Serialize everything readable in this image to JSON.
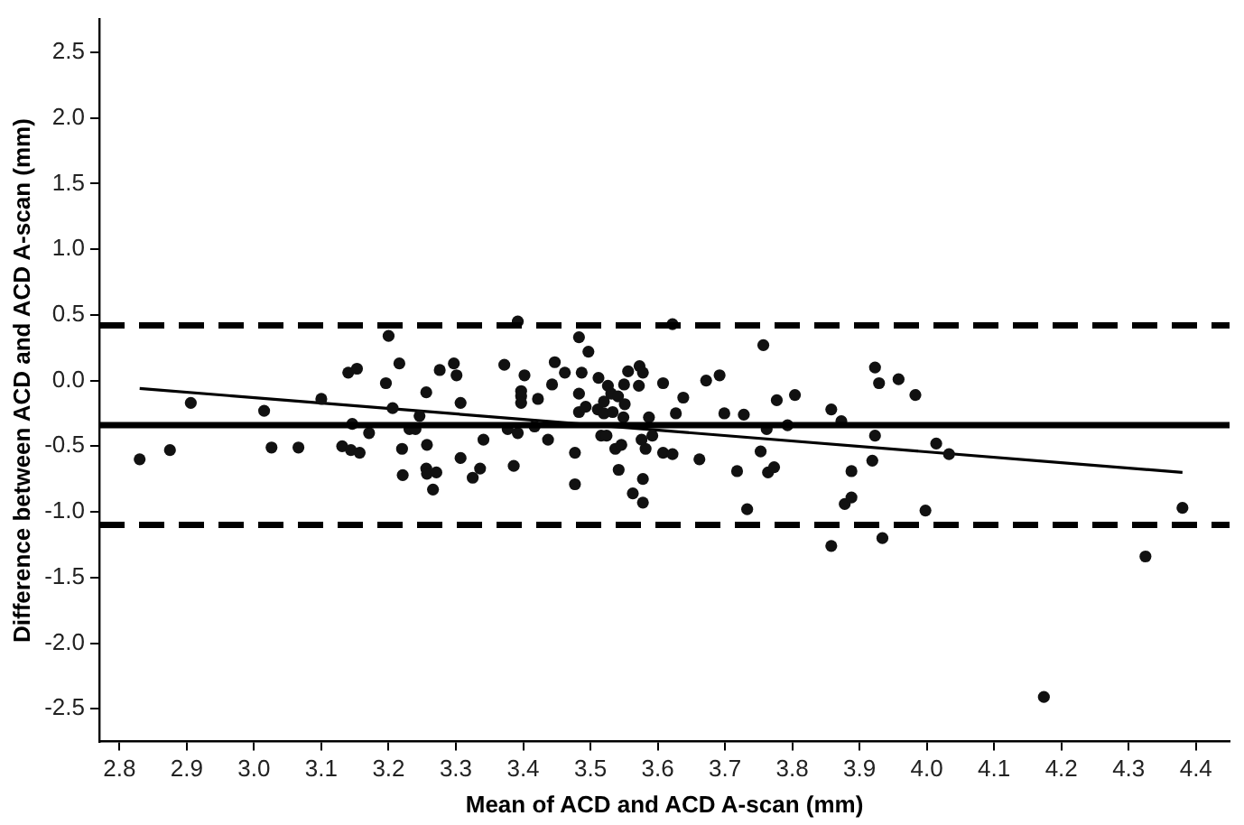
{
  "chart_data": {
    "type": "scatter",
    "xlabel": "Mean of ACD and ACD A-scan (mm)",
    "ylabel": "Difference between ACD and ACD A-scan (mm)",
    "xlim": [
      2.77,
      4.45
    ],
    "xticks": [
      2.8,
      2.9,
      {
        "value": 3.0,
        "label": "3.0"
      },
      3.1,
      3.2,
      3.3,
      3.4,
      3.5,
      3.6,
      3.7,
      3.8,
      3.9,
      {
        "value": 4.0,
        "label": "4.0"
      },
      4.1,
      4.2,
      4.3,
      4.4
    ],
    "ylim": [
      -2.75,
      2.75
    ],
    "yticks": [
      {
        "value": -2.5,
        "label": "-2.5"
      },
      {
        "value": -2.0,
        "label": "-2.0"
      },
      {
        "value": -1.5,
        "label": "-1.5"
      },
      {
        "value": -1.0,
        "label": "-1.0"
      },
      {
        "value": -0.5,
        "label": "-0.5"
      },
      {
        "value": 0,
        "label": "0.0"
      },
      {
        "value": 0.5,
        "label": "0.5"
      },
      {
        "value": 1.0,
        "label": "1.0"
      },
      {
        "value": 1.5,
        "label": "1.5"
      },
      {
        "value": 2.0,
        "label": "2.0"
      },
      {
        "value": 2.5,
        "label": "2.5"
      }
    ],
    "grid": false,
    "legend": false,
    "series": [
      {
        "type": "scatter",
        "marker": "circle",
        "color": "#111111",
        "x": [
          2.83,
          2.875,
          2.906,
          3.015,
          3.026,
          3.066,
          3.1,
          3.131,
          3.144,
          3.157,
          3.14,
          3.153,
          3.146,
          3.171,
          3.2,
          3.216,
          3.196,
          3.206,
          3.22,
          3.221,
          3.246,
          3.231,
          3.24,
          3.256,
          3.257,
          3.256,
          3.257,
          3.271,
          3.266,
          3.276,
          3.297,
          3.301,
          3.307,
          3.307,
          3.325,
          3.336,
          3.341,
          3.372,
          3.392,
          3.386,
          3.377,
          3.392,
          3.397,
          3.397,
          3.397,
          3.402,
          3.417,
          3.422,
          3.437,
          3.443,
          3.447,
          3.462,
          3.477,
          3.477,
          3.483,
          3.497,
          3.487,
          3.483,
          3.483,
          3.493,
          3.512,
          3.511,
          3.516,
          3.52,
          3.526,
          3.531,
          3.541,
          3.55,
          3.551,
          3.52,
          3.533,
          3.524,
          3.537,
          3.546,
          3.542,
          3.549,
          3.556,
          3.573,
          3.578,
          3.572,
          3.582,
          3.576,
          3.578,
          3.563,
          3.578,
          3.587,
          3.592,
          3.608,
          3.608,
          3.622,
          3.622,
          3.627,
          3.638,
          3.662,
          3.672,
          3.692,
          3.699,
          3.718,
          3.728,
          3.733,
          3.753,
          3.757,
          3.762,
          3.764,
          3.773,
          3.777,
          3.793,
          3.804,
          3.858,
          3.873,
          3.858,
          3.888,
          3.878,
          3.888,
          3.919,
          3.923,
          3.923,
          3.929,
          3.934,
          3.958,
          3.983,
          3.998,
          4.014,
          4.033,
          4.174,
          4.325,
          4.38
        ],
        "values": [
          -0.6,
          -0.53,
          -0.17,
          -0.23,
          -0.51,
          -0.51,
          -0.14,
          -0.5,
          -0.53,
          -0.55,
          0.06,
          0.09,
          -0.33,
          -0.4,
          0.34,
          0.13,
          -0.02,
          -0.21,
          -0.52,
          -0.72,
          -0.27,
          -0.37,
          -0.37,
          -0.09,
          -0.49,
          -0.67,
          -0.71,
          -0.7,
          -0.83,
          0.08,
          0.13,
          0.04,
          -0.17,
          -0.59,
          -0.74,
          -0.67,
          -0.45,
          0.12,
          0.45,
          -0.65,
          -0.37,
          -0.4,
          -0.08,
          -0.12,
          -0.17,
          0.04,
          -0.35,
          -0.14,
          -0.45,
          -0.03,
          0.14,
          0.06,
          -0.55,
          -0.79,
          0.33,
          0.22,
          0.06,
          -0.1,
          -0.24,
          -0.2,
          0.02,
          -0.22,
          -0.42,
          -0.16,
          -0.04,
          -0.1,
          -0.12,
          -0.03,
          -0.18,
          -0.25,
          -0.24,
          -0.42,
          -0.52,
          -0.49,
          -0.68,
          -0.28,
          0.07,
          0.11,
          0.06,
          -0.04,
          -0.52,
          -0.45,
          -0.75,
          -0.86,
          -0.93,
          -0.28,
          -0.42,
          -0.02,
          -0.55,
          -0.56,
          0.43,
          -0.25,
          -0.13,
          -0.6,
          0.0,
          0.04,
          -0.25,
          -0.69,
          -0.26,
          -0.98,
          -0.54,
          0.27,
          -0.37,
          -0.7,
          -0.66,
          -0.15,
          -0.34,
          -0.11,
          -0.22,
          -0.31,
          -1.26,
          -0.69,
          -0.94,
          -0.89,
          -0.61,
          -0.42,
          0.1,
          -0.02,
          -1.2,
          0.01,
          -0.11,
          -0.99,
          -0.48,
          -0.56,
          -2.41,
          -1.34,
          -0.97
        ]
      },
      {
        "type": "line",
        "marker": "none",
        "color": "#000000",
        "x": [
          2.83,
          4.38
        ],
        "values": [
          -0.06,
          -0.7
        ]
      }
    ],
    "ref_lines": [
      {
        "axis": "y",
        "value": -0.34,
        "color": "#000000",
        "line_style": "solid"
      },
      {
        "axis": "y",
        "value": 0.42,
        "color": "#000000",
        "line_style": "dashed"
      },
      {
        "axis": "y",
        "value": -1.1,
        "color": "#000000",
        "line_style": "dashed"
      }
    ]
  }
}
